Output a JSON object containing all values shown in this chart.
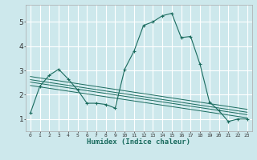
{
  "xlabel": "Humidex (Indice chaleur)",
  "bg_color": "#cde8ec",
  "grid_color": "#ffffff",
  "line_color": "#1a6b5e",
  "xlim": [
    -0.5,
    23.5
  ],
  "ylim": [
    0.5,
    5.7
  ],
  "yticks": [
    1,
    2,
    3,
    4,
    5
  ],
  "xticks": [
    0,
    1,
    2,
    3,
    4,
    5,
    6,
    7,
    8,
    9,
    10,
    11,
    12,
    13,
    14,
    15,
    16,
    17,
    18,
    19,
    20,
    21,
    22,
    23
  ],
  "series": [
    [
      0,
      1.25
    ],
    [
      1,
      2.35
    ],
    [
      2,
      2.8
    ],
    [
      3,
      3.05
    ],
    [
      4,
      2.65
    ],
    [
      5,
      2.2
    ],
    [
      6,
      1.65
    ],
    [
      7,
      1.65
    ],
    [
      8,
      1.6
    ],
    [
      9,
      1.45
    ],
    [
      10,
      3.05
    ],
    [
      11,
      3.8
    ],
    [
      12,
      4.85
    ],
    [
      13,
      5.0
    ],
    [
      14,
      5.25
    ],
    [
      15,
      5.35
    ],
    [
      16,
      4.35
    ],
    [
      17,
      4.4
    ],
    [
      18,
      3.25
    ],
    [
      19,
      1.7
    ],
    [
      20,
      1.35
    ],
    [
      21,
      0.9
    ],
    [
      22,
      1.0
    ],
    [
      23,
      1.0
    ]
  ],
  "regression_lines": [
    {
      "x": [
        0,
        23
      ],
      "y": [
        2.75,
        1.4
      ]
    },
    {
      "x": [
        0,
        23
      ],
      "y": [
        2.62,
        1.28
      ]
    },
    {
      "x": [
        0,
        23
      ],
      "y": [
        2.52,
        1.18
      ]
    },
    {
      "x": [
        0,
        23
      ],
      "y": [
        2.38,
        1.05
      ]
    }
  ]
}
